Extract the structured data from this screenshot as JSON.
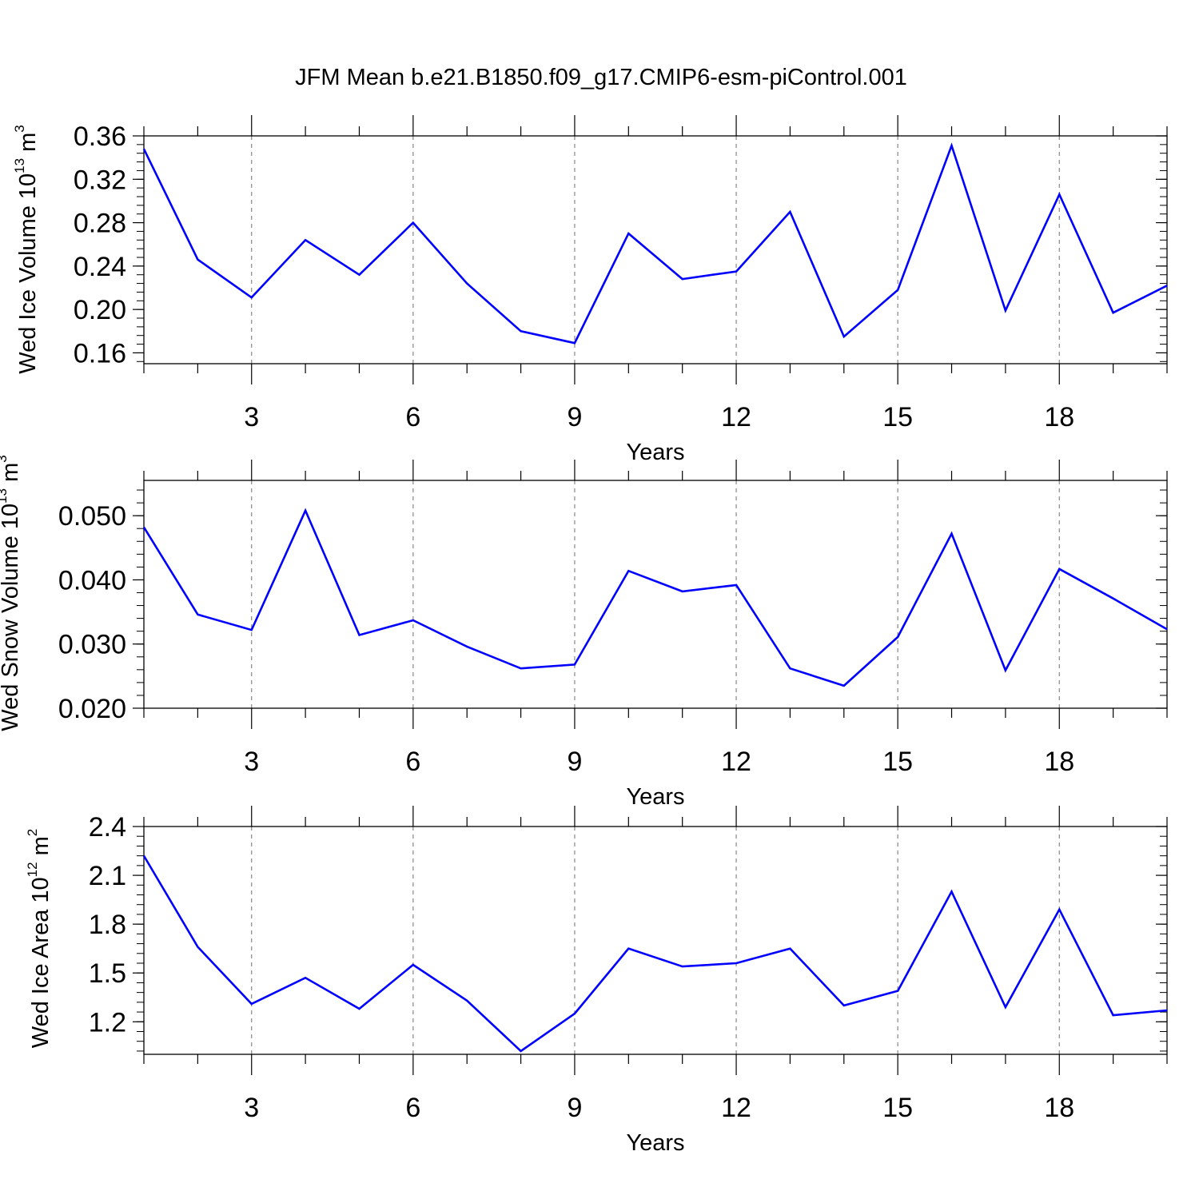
{
  "figure": {
    "title": "JFM Mean b.e21.B1850.f09_g17.CMIP6-esm-piControl.001",
    "line_color": "#0000ff",
    "grid_color": "#888888"
  },
  "chart_data": [
    {
      "type": "line",
      "title": "JFM Mean b.e21.B1850.f09_g17.CMIP6-esm-piControl.001",
      "xlabel": "Years",
      "ylabel": "Wed Ice Volume 10",
      "ylabel_exp": "13",
      "ylabel_unit": " m",
      "ylabel_unit_exp": "3",
      "xlim": [
        1,
        20
      ],
      "ylim": [
        0.15,
        0.36
      ],
      "xticks": [
        3,
        6,
        9,
        12,
        15,
        18
      ],
      "xtick_labels": [
        "3",
        "6",
        "9",
        "12",
        "15",
        "18"
      ],
      "yticks": [
        0.16,
        0.2,
        0.24,
        0.28,
        0.32,
        0.36
      ],
      "ytick_labels": [
        "0.16",
        "0.20",
        "0.24",
        "0.28",
        "0.32",
        "0.36"
      ],
      "y_minor_step": 0.008,
      "x": [
        1,
        2,
        3,
        4,
        5,
        6,
        7,
        8,
        9,
        10,
        11,
        12,
        13,
        14,
        15,
        16,
        17,
        18,
        19,
        20
      ],
      "series": [
        {
          "name": "Wed Ice Volume",
          "values": [
            0.348,
            0.246,
            0.211,
            0.264,
            0.232,
            0.28,
            0.224,
            0.18,
            0.169,
            0.27,
            0.228,
            0.235,
            0.29,
            0.175,
            0.218,
            0.351,
            0.199,
            0.306,
            0.197,
            0.222
          ]
        }
      ]
    },
    {
      "type": "line",
      "xlabel": "Years",
      "ylabel": "Wed Snow Volume 10",
      "ylabel_exp": "13",
      "ylabel_unit": " m",
      "ylabel_unit_exp": "3",
      "xlim": [
        1,
        20
      ],
      "ylim": [
        0.02,
        0.0555
      ],
      "xticks": [
        3,
        6,
        9,
        12,
        15,
        18
      ],
      "xtick_labels": [
        "3",
        "6",
        "9",
        "12",
        "15",
        "18"
      ],
      "yticks": [
        0.02,
        0.03,
        0.04,
        0.05
      ],
      "ytick_labels": [
        "0.020",
        "0.030",
        "0.040",
        "0.050"
      ],
      "y_minor_step": 0.002,
      "x": [
        1,
        2,
        3,
        4,
        5,
        6,
        7,
        8,
        9,
        10,
        11,
        12,
        13,
        14,
        15,
        16,
        17,
        18,
        19,
        20
      ],
      "series": [
        {
          "name": "Wed Snow Volume",
          "values": [
            0.0482,
            0.0346,
            0.0322,
            0.0508,
            0.0314,
            0.0337,
            0.0296,
            0.0262,
            0.0268,
            0.0414,
            0.0382,
            0.0392,
            0.0262,
            0.0235,
            0.0311,
            0.0472,
            0.0259,
            0.0417,
            0.0371,
            0.0323
          ]
        }
      ]
    },
    {
      "type": "line",
      "xlabel": "Years",
      "ylabel": "Wed Ice Area 10",
      "ylabel_exp": "12",
      "ylabel_unit": " m",
      "ylabel_unit_exp": "2",
      "xlim": [
        1,
        20
      ],
      "ylim": [
        1.0,
        2.4
      ],
      "xticks": [
        3,
        6,
        9,
        12,
        15,
        18
      ],
      "xtick_labels": [
        "3",
        "6",
        "9",
        "12",
        "15",
        "18"
      ],
      "yticks": [
        1.2,
        1.5,
        1.8,
        2.1,
        2.4
      ],
      "ytick_labels": [
        "1.2",
        "1.5",
        "1.8",
        "2.1",
        "2.4"
      ],
      "y_minor_step": 0.06,
      "x": [
        1,
        2,
        3,
        4,
        5,
        6,
        7,
        8,
        9,
        10,
        11,
        12,
        13,
        14,
        15,
        16,
        17,
        18,
        19,
        20
      ],
      "series": [
        {
          "name": "Wed Ice Area",
          "values": [
            2.22,
            1.66,
            1.31,
            1.47,
            1.28,
            1.55,
            1.33,
            1.02,
            1.25,
            1.65,
            1.54,
            1.56,
            1.65,
            1.3,
            1.39,
            2.0,
            1.29,
            1.89,
            1.24,
            1.27
          ]
        }
      ]
    }
  ]
}
